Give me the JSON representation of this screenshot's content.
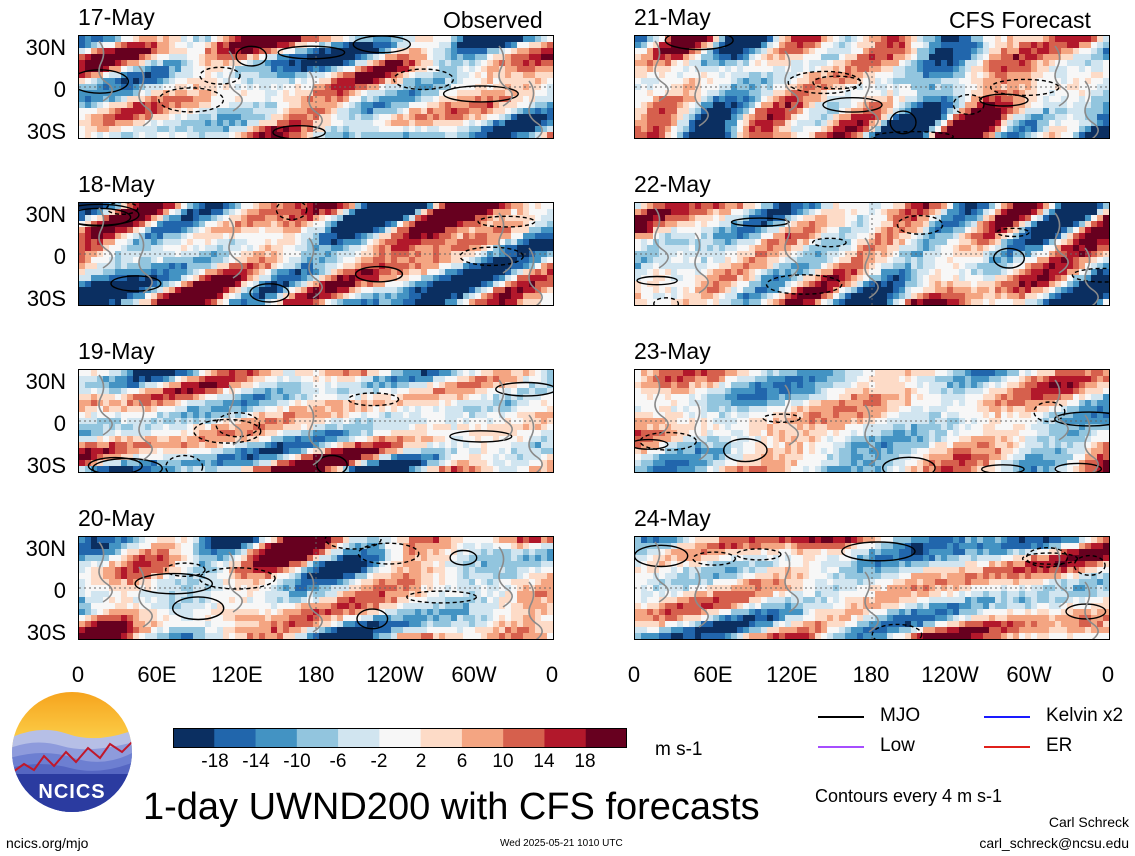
{
  "header": {
    "observed_label": "Observed",
    "forecast_label": "CFS Forecast"
  },
  "left_dates": [
    "17-May",
    "18-May",
    "19-May",
    "20-May"
  ],
  "right_dates": [
    "21-May",
    "22-May",
    "23-May",
    "24-May"
  ],
  "lat_labels": [
    "30N",
    "0",
    "30S"
  ],
  "lon_labels": [
    "0",
    "60E",
    "120E",
    "180",
    "120W",
    "60W",
    "0"
  ],
  "colorbar": {
    "colors": [
      "#0b2f61",
      "#2166ac",
      "#4393c3",
      "#92c5de",
      "#d1e5f0",
      "#f7f7f7",
      "#fddbc7",
      "#f4a582",
      "#d6604d",
      "#b2182b",
      "#67001f"
    ],
    "tick_labels": [
      "-18",
      "-14",
      "-10",
      "-6",
      "-2",
      "2",
      "6",
      "10",
      "14",
      "18"
    ],
    "unit": "m s-1"
  },
  "legend": [
    {
      "label": "MJO",
      "color": "#000000"
    },
    {
      "label": "Kelvin x2",
      "color": "#1a1aff"
    },
    {
      "label": "Low",
      "color": "#a64dff"
    },
    {
      "label": "ER",
      "color": "#e0201b"
    }
  ],
  "contour_note": "Contours every 4 m s-1",
  "title": "1-day UWND200 with CFS forecasts",
  "logo_text": "NCICS",
  "footer": {
    "url": "ncics.org/mjo",
    "timestamp": "Wed 2025-05-21 1010 UTC",
    "author": "Carl Schreck",
    "email": "carl_schreck@ncsu.edu"
  }
}
